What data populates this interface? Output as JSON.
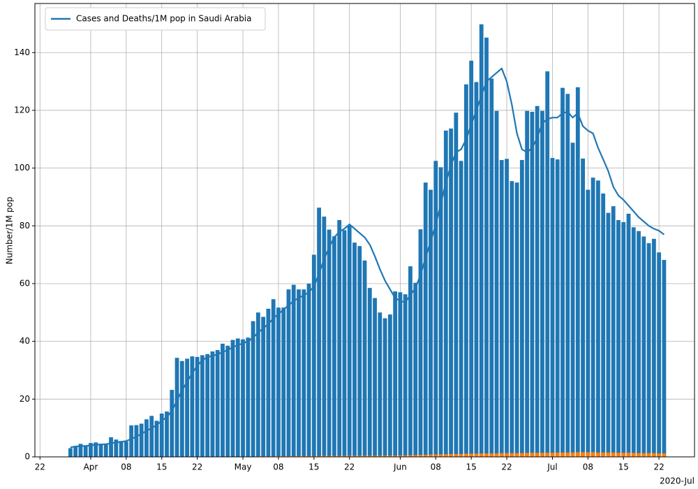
{
  "chart_data": {
    "type": "bar",
    "legend": "upper left",
    "grid": true,
    "ylabel": "Number/1M pop",
    "x_offset_label": "2020-Jul",
    "xlim": [
      "2020-03-21",
      "2020-07-29"
    ],
    "ylim": [
      0,
      157
    ],
    "yticks": [
      0,
      20,
      40,
      60,
      80,
      100,
      120,
      140
    ],
    "xticks": [
      {
        "value": "2020-03-22",
        "label": "22"
      },
      {
        "value": "2020-04-01",
        "label": "Apr"
      },
      {
        "value": "2020-04-08",
        "label": "08"
      },
      {
        "value": "2020-04-15",
        "label": "15"
      },
      {
        "value": "2020-04-22",
        "label": "22"
      },
      {
        "value": "2020-05-01",
        "label": "May"
      },
      {
        "value": "2020-05-08",
        "label": "08"
      },
      {
        "value": "2020-05-15",
        "label": "15"
      },
      {
        "value": "2020-05-22",
        "label": "22"
      },
      {
        "value": "2020-06-01",
        "label": "Jun"
      },
      {
        "value": "2020-06-08",
        "label": "08"
      },
      {
        "value": "2020-06-15",
        "label": "15"
      },
      {
        "value": "2020-06-22",
        "label": "22"
      },
      {
        "value": "2020-07-01",
        "label": "Jul"
      },
      {
        "value": "2020-07-08",
        "label": "08"
      },
      {
        "value": "2020-07-15",
        "label": "15"
      },
      {
        "value": "2020-07-22",
        "label": "22"
      }
    ],
    "x": [
      "2020-03-28",
      "2020-03-29",
      "2020-03-30",
      "2020-03-31",
      "2020-04-01",
      "2020-04-02",
      "2020-04-03",
      "2020-04-04",
      "2020-04-05",
      "2020-04-06",
      "2020-04-07",
      "2020-04-08",
      "2020-04-09",
      "2020-04-10",
      "2020-04-11",
      "2020-04-12",
      "2020-04-13",
      "2020-04-14",
      "2020-04-15",
      "2020-04-16",
      "2020-04-17",
      "2020-04-18",
      "2020-04-19",
      "2020-04-20",
      "2020-04-21",
      "2020-04-22",
      "2020-04-23",
      "2020-04-24",
      "2020-04-25",
      "2020-04-26",
      "2020-04-27",
      "2020-04-28",
      "2020-04-29",
      "2020-04-30",
      "2020-05-01",
      "2020-05-02",
      "2020-05-03",
      "2020-05-04",
      "2020-05-05",
      "2020-05-06",
      "2020-05-07",
      "2020-05-08",
      "2020-05-09",
      "2020-05-10",
      "2020-05-11",
      "2020-05-12",
      "2020-05-13",
      "2020-05-14",
      "2020-05-15",
      "2020-05-16",
      "2020-05-17",
      "2020-05-18",
      "2020-05-19",
      "2020-05-20",
      "2020-05-21",
      "2020-05-22",
      "2020-05-23",
      "2020-05-24",
      "2020-05-25",
      "2020-05-26",
      "2020-05-27",
      "2020-05-28",
      "2020-05-29",
      "2020-05-30",
      "2020-05-31",
      "2020-06-01",
      "2020-06-02",
      "2020-06-03",
      "2020-06-04",
      "2020-06-05",
      "2020-06-06",
      "2020-06-07",
      "2020-06-08",
      "2020-06-09",
      "2020-06-10",
      "2020-06-11",
      "2020-06-12",
      "2020-06-13",
      "2020-06-14",
      "2020-06-15",
      "2020-06-16",
      "2020-06-17",
      "2020-06-18",
      "2020-06-19",
      "2020-06-20",
      "2020-06-21",
      "2020-06-22",
      "2020-06-23",
      "2020-06-24",
      "2020-06-25",
      "2020-06-26",
      "2020-06-27",
      "2020-06-28",
      "2020-06-29",
      "2020-06-30",
      "2020-07-01",
      "2020-07-02",
      "2020-07-03",
      "2020-07-04",
      "2020-07-05",
      "2020-07-06",
      "2020-07-07",
      "2020-07-08",
      "2020-07-09",
      "2020-07-10",
      "2020-07-11",
      "2020-07-12",
      "2020-07-13",
      "2020-07-14",
      "2020-07-15",
      "2020-07-16",
      "2020-07-17",
      "2020-07-18",
      "2020-07-19",
      "2020-07-20",
      "2020-07-21",
      "2020-07-22",
      "2020-07-23"
    ],
    "series": [
      {
        "type": "bar",
        "color": "#1f77b4",
        "values": [
          3,
          3.5,
          4.5,
          4,
          4.8,
          5,
          4.5,
          4.3,
          6.8,
          6,
          5.5,
          5.3,
          10.9,
          11,
          11.5,
          13,
          14.2,
          12.5,
          15,
          15.7,
          23.2,
          34.3,
          33.2,
          34,
          34.8,
          34.6,
          35.2,
          35.6,
          36.5,
          37,
          39.2,
          38.5,
          40.5,
          41,
          40.7,
          41.3,
          47,
          50,
          48.5,
          51.3,
          54.6,
          51.7,
          51.7,
          58,
          59.6,
          58,
          58,
          60,
          70,
          86.3,
          83.2,
          78.7,
          76.4,
          82,
          78.5,
          80.2,
          74.2,
          73,
          68,
          58.5,
          55,
          50,
          48,
          49.3,
          57.3,
          57,
          56.3,
          66,
          60.3,
          78.8,
          95,
          92.5,
          102.5,
          100.3,
          113,
          113.7,
          119.2,
          102.5,
          129,
          137.2,
          129.8,
          149.8,
          145.2,
          131,
          119.8,
          102.8,
          103.2,
          95.5,
          95,
          102.8,
          119.8,
          119.5,
          121.5,
          119.8,
          133.5,
          103.5,
          103,
          127.8,
          125.7,
          108.8,
          128,
          103.3,
          92.5,
          96.7,
          95.7,
          91.2,
          84.5,
          86.8,
          82,
          81.3,
          84.2,
          79.5,
          78.2,
          76.3,
          74,
          75.5,
          70.8,
          68.2
        ]
      },
      {
        "type": "bar",
        "color": "#ff7f0e",
        "values": [
          0.05,
          0.05,
          0.05,
          0.05,
          0.05,
          0.05,
          0.05,
          0.05,
          0.05,
          0.05,
          0.05,
          0.05,
          0.05,
          0.05,
          0.08,
          0.08,
          0.08,
          0.08,
          0.08,
          0.08,
          0.08,
          0.08,
          0.08,
          0.08,
          0.1,
          0.1,
          0.1,
          0.1,
          0.1,
          0.1,
          0.1,
          0.1,
          0.1,
          0.1,
          0.15,
          0.15,
          0.15,
          0.2,
          0.2,
          0.2,
          0.2,
          0.25,
          0.25,
          0.25,
          0.25,
          0.3,
          0.3,
          0.3,
          0.3,
          0.3,
          0.35,
          0.35,
          0.35,
          0.35,
          0.35,
          0.4,
          0.4,
          0.4,
          0.4,
          0.4,
          0.4,
          0.4,
          0.45,
          0.45,
          0.45,
          0.5,
          0.5,
          0.6,
          0.6,
          0.7,
          0.7,
          0.8,
          0.8,
          0.9,
          0.9,
          1,
          1,
          1,
          1.1,
          1.1,
          1.1,
          1.2,
          1.2,
          1.2,
          1.2,
          1.3,
          1.3,
          1.3,
          1.3,
          1.3,
          1.4,
          1.4,
          1.4,
          1.4,
          1.4,
          1.4,
          1.5,
          1.5,
          1.5,
          1.5,
          1.6,
          1.6,
          1.6,
          1.6,
          1.5,
          1.5,
          1.5,
          1.5,
          1.4,
          1.4,
          1.4,
          1.4,
          1.3,
          1.3,
          1.3,
          1.3,
          1.2,
          1.2
        ]
      },
      {
        "type": "line",
        "name": "Cases and Deaths/1M pop in Saudi Arabia",
        "color": "#1f77b4",
        "values": [
          3.3,
          3.6,
          3.7,
          3.8,
          4,
          4.2,
          4.3,
          4.4,
          4.7,
          5,
          5.2,
          5.5,
          6.2,
          7,
          8,
          9,
          10,
          11,
          12.5,
          13.8,
          16,
          19.5,
          23,
          26,
          29,
          31.5,
          33.5,
          34.5,
          35,
          35.5,
          36.3,
          37,
          38,
          38.7,
          39.3,
          40,
          41.3,
          43,
          44.5,
          46,
          48,
          49.5,
          51,
          52.5,
          54,
          55,
          56,
          57,
          59,
          63.5,
          68.5,
          72.5,
          76,
          78,
          79,
          80.5,
          79,
          77.5,
          76,
          73.5,
          69.5,
          65,
          61,
          58,
          55,
          54,
          53.5,
          56,
          58.5,
          63,
          69,
          74.5,
          80.5,
          87.5,
          95,
          101,
          105.5,
          106.5,
          110,
          115,
          120,
          125,
          130,
          131.5,
          133,
          134.5,
          130,
          122,
          112,
          106.5,
          105.5,
          107,
          110.5,
          115.5,
          117,
          117.5,
          117.5,
          119,
          119.5,
          117.5,
          119,
          114.5,
          113,
          112,
          107,
          103,
          99,
          93.5,
          90.5,
          89,
          87,
          85,
          83,
          81.5,
          80,
          79,
          78.3,
          77
        ]
      }
    ]
  }
}
